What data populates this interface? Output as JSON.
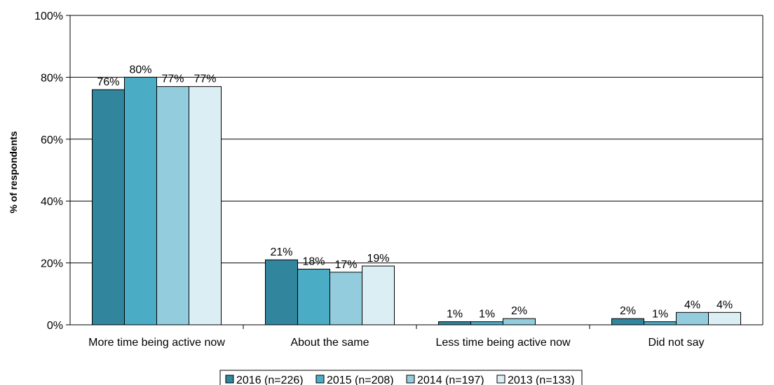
{
  "chart_data": {
    "type": "bar",
    "title": "",
    "xlabel": "",
    "ylabel": "% of respondents",
    "ylim": [
      0,
      100
    ],
    "yticks": [
      0,
      20,
      40,
      60,
      80,
      100
    ],
    "ytick_suffix": "%",
    "grid": "horizontal",
    "legend_position": "bottom",
    "categories": [
      "More time being active now",
      "About the same",
      "Less time being active now",
      "Did not say"
    ],
    "series": [
      {
        "name": "2016 (n=226)",
        "color": "#31859c",
        "values": [
          76,
          21,
          1,
          2
        ],
        "labels": [
          "76%",
          "21%",
          "1%",
          "2%"
        ]
      },
      {
        "name": "2015 (n=208)",
        "color": "#4bacc6",
        "values": [
          80,
          18,
          1,
          1
        ],
        "labels": [
          "80%",
          "18%",
          "1%",
          "1%"
        ]
      },
      {
        "name": "2014 (n=197)",
        "color": "#93cddd",
        "values": [
          77,
          17,
          2,
          4
        ],
        "labels": [
          "77%",
          "17%",
          "2%",
          "4%"
        ]
      },
      {
        "name": "2013 (n=133)",
        "color": "#dbeef3",
        "values": [
          77,
          19,
          null,
          4
        ],
        "labels": [
          "77%",
          "19%",
          "",
          "4%"
        ]
      }
    ]
  }
}
